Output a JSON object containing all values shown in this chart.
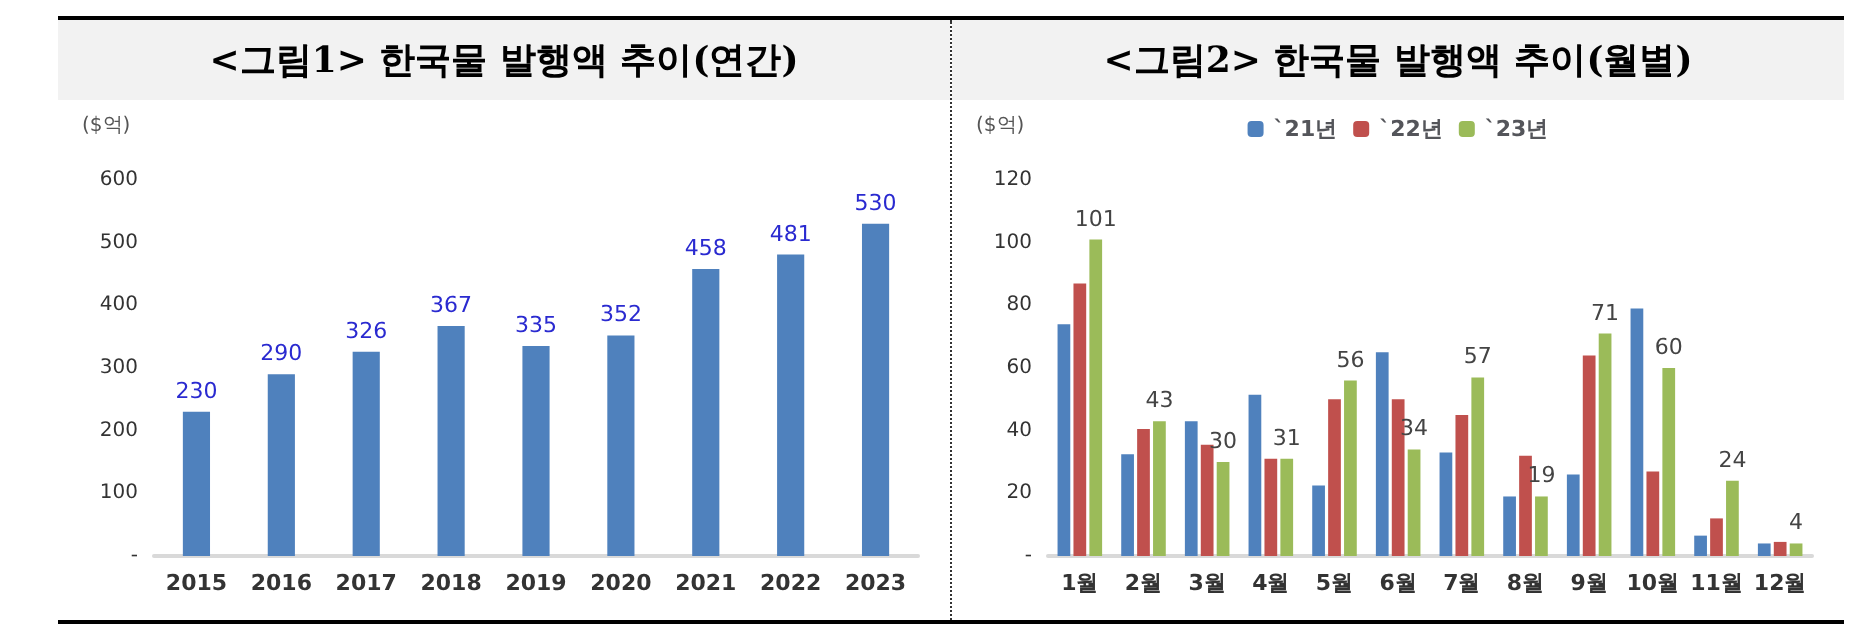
{
  "chart_data": [
    {
      "type": "bar",
      "title": "<그림1> 한국물 발행액 추이(연간)",
      "ylabel": "($억)",
      "categories": [
        "2015",
        "2016",
        "2017",
        "2018",
        "2019",
        "2020",
        "2021",
        "2022",
        "2023"
      ],
      "series": [
        {
          "color": "#4f81bd",
          "values": [
            230,
            290,
            326,
            367,
            335,
            352,
            458,
            481,
            530
          ]
        }
      ],
      "data_labels": true,
      "ylim": [
        0,
        600
      ],
      "yticks": [
        {
          "value": 0,
          "label": "-"
        },
        100,
        200,
        300,
        400,
        500,
        600
      ],
      "grid": false,
      "legend": false
    },
    {
      "type": "bar",
      "title": "<그림2> 한국물 발행액 추이(월별)",
      "ylabel": "($억)",
      "categories": [
        "1월",
        "2월",
        "3월",
        "4월",
        "5월",
        "6월",
        "7월",
        "8월",
        "9월",
        "10월",
        "11월",
        "12월"
      ],
      "series": [
        {
          "name": "`21년",
          "color": "#4f81bd",
          "values": [
            74,
            32.5,
            43,
            51.5,
            22.5,
            65,
            33,
            19,
            26,
            79,
            6.5,
            4
          ]
        },
        {
          "name": "`22년",
          "color": "#c0504d",
          "values": [
            87,
            40.5,
            35.5,
            31,
            50,
            50,
            45,
            32,
            64,
            27,
            12,
            4.5
          ]
        },
        {
          "name": "`23년",
          "color": "#9bbb59",
          "values": [
            101,
            43,
            30,
            31,
            56,
            34,
            57,
            19,
            71,
            60,
            24,
            4
          ],
          "value_labels": [
            "101",
            "43",
            "30",
            "31",
            "56",
            "34",
            "57",
            "19",
            "71",
            "60",
            "24",
            "4"
          ]
        }
      ],
      "ylim": [
        0,
        120
      ],
      "yticks": [
        {
          "value": 0,
          "label": "-"
        },
        20,
        40,
        60,
        80,
        100,
        120
      ],
      "grid": false,
      "legend": "top"
    }
  ]
}
